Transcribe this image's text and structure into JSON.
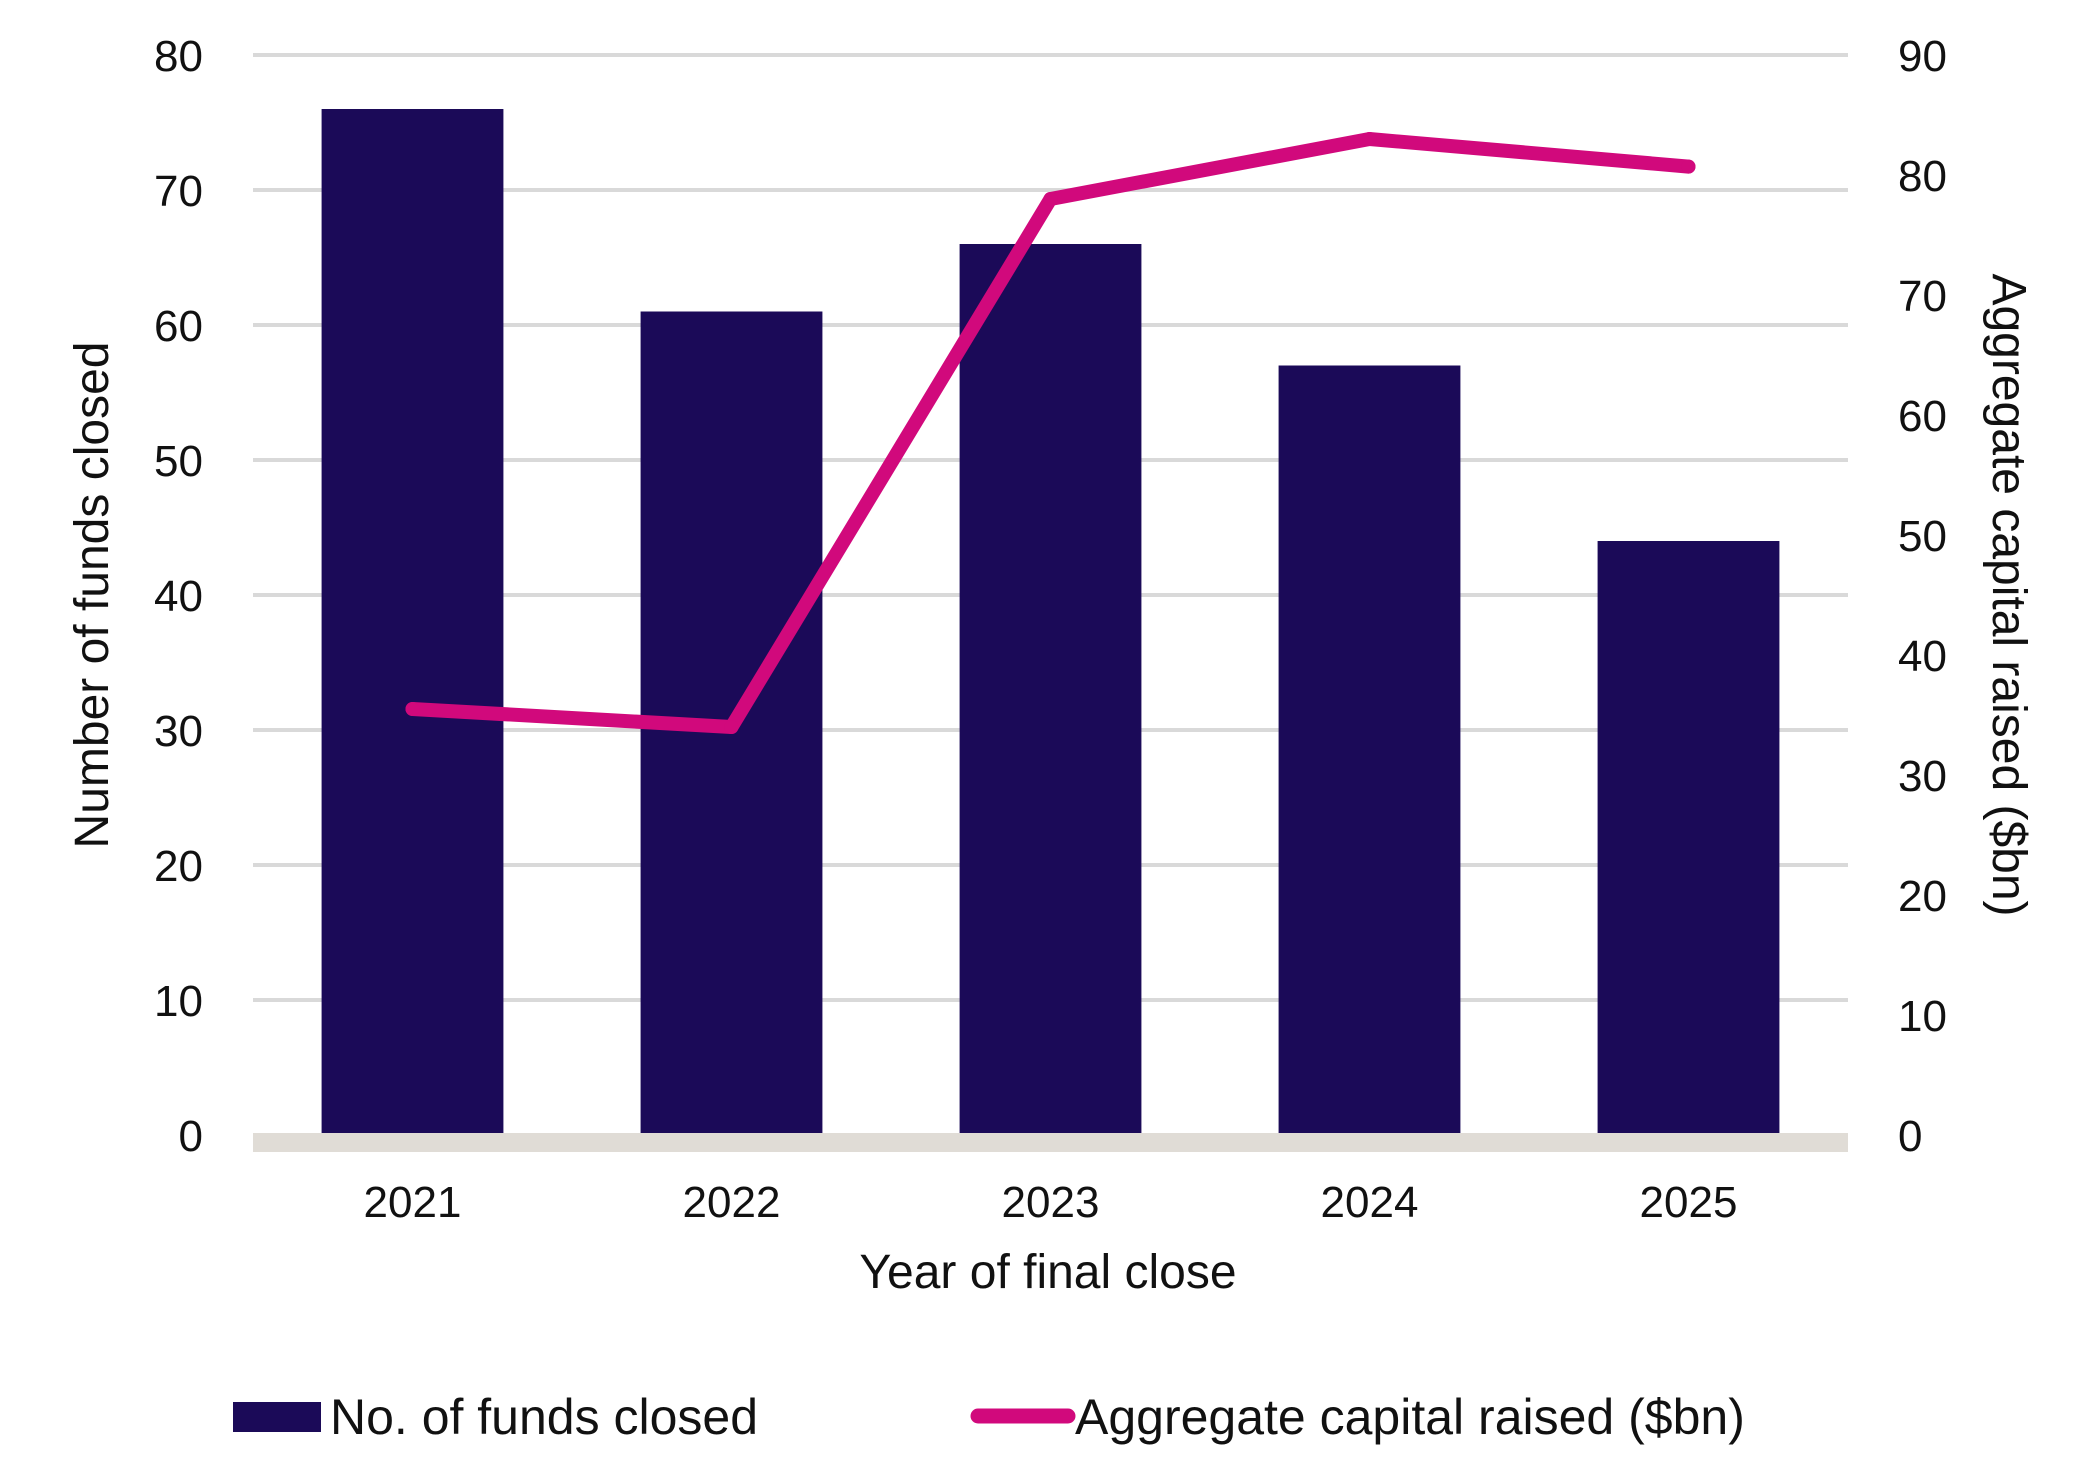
{
  "chart_data": {
    "type": "bar",
    "categories": [
      "2021",
      "2022",
      "2023",
      "2024",
      "2025"
    ],
    "series": [
      {
        "name": "No. of funds closed",
        "type": "bar",
        "axis": "left",
        "values": [
          76,
          61,
          66,
          57,
          44
        ]
      },
      {
        "name": "Aggregate capital raised ($bn)",
        "type": "line",
        "axis": "right",
        "values": [
          35.5,
          34,
          78,
          83,
          80.7
        ]
      }
    ],
    "xlabel": "Year of final close",
    "ylabel": "Number of funds closed",
    "y2label": "Aggregate capital raised ($bn)",
    "ylim": [
      0,
      80
    ],
    "y2lim": [
      0,
      90
    ],
    "yticks": [
      "0",
      "10",
      "20",
      "30",
      "40",
      "50",
      "60",
      "70",
      "80"
    ],
    "y2ticks": [
      "0",
      "10",
      "20",
      "30",
      "40",
      "50",
      "60",
      "70",
      "80",
      "90"
    ],
    "grid": true,
    "legend_position": "bottom",
    "colors": {
      "bar": "#1b0a58",
      "line": "#d1097c",
      "grid": "#d9d9d9",
      "baseline": "#e0dcd6"
    }
  }
}
